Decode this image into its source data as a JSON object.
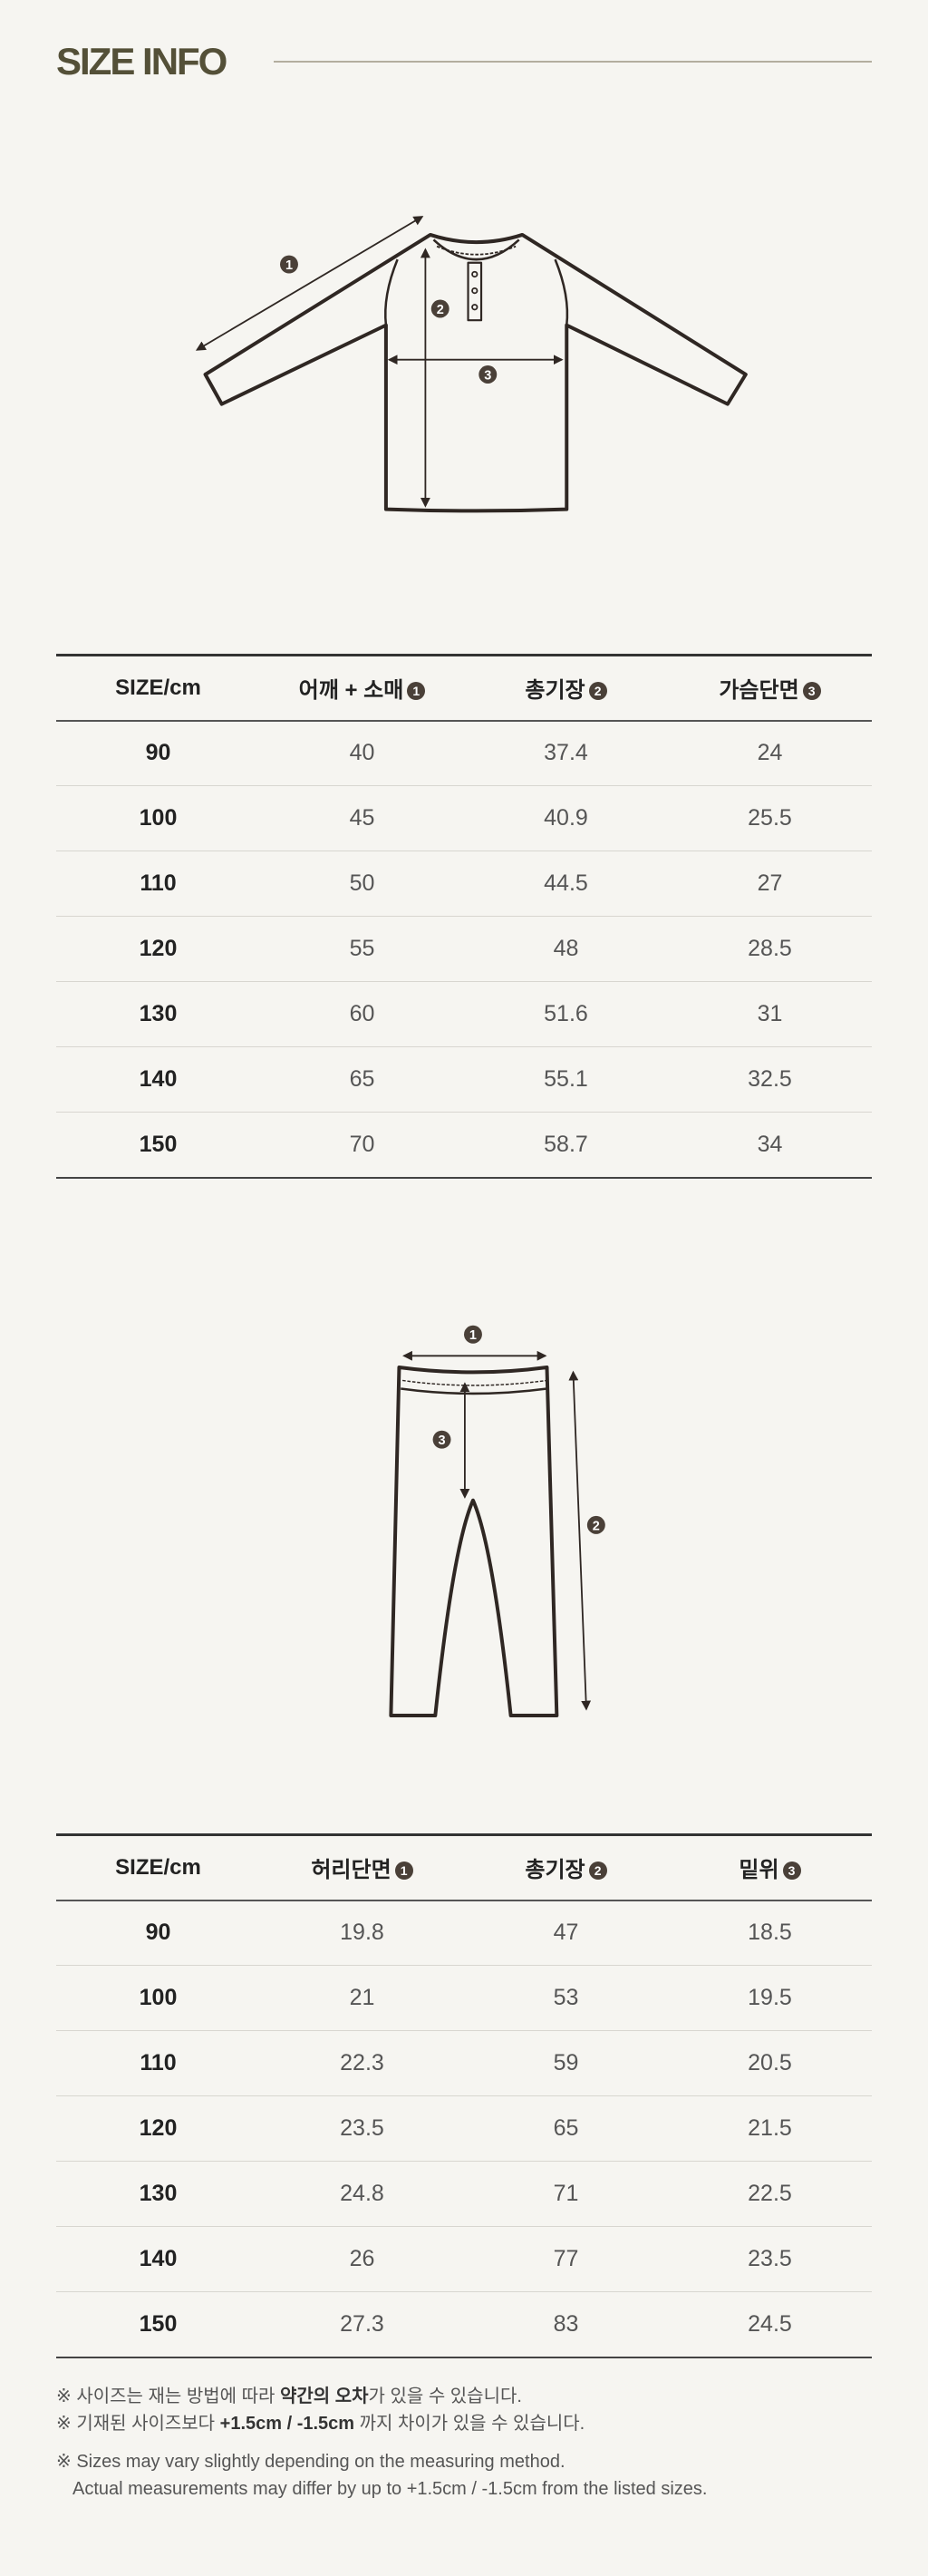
{
  "title": "SIZE INFO",
  "colors": {
    "background": "#f6f5f1",
    "title": "#545038",
    "rule": "#b3ae9f",
    "marker": "#4a4038",
    "outline": "#2f2723"
  },
  "top_table": {
    "headers": [
      {
        "label": "SIZE/cm"
      },
      {
        "label": "어깨 + 소매",
        "marker": "1"
      },
      {
        "label": "총기장",
        "marker": "2"
      },
      {
        "label": "가슴단면",
        "marker": "3"
      }
    ],
    "rows": [
      [
        "90",
        "40",
        "37.4",
        "24"
      ],
      [
        "100",
        "45",
        "40.9",
        "25.5"
      ],
      [
        "110",
        "50",
        "44.5",
        "27"
      ],
      [
        "120",
        "55",
        "48",
        "28.5"
      ],
      [
        "130",
        "60",
        "51.6",
        "31"
      ],
      [
        "140",
        "65",
        "55.1",
        "32.5"
      ],
      [
        "150",
        "70",
        "58.7",
        "34"
      ]
    ]
  },
  "bottom_table": {
    "headers": [
      {
        "label": "SIZE/cm"
      },
      {
        "label": "허리단면",
        "marker": "1"
      },
      {
        "label": "총기장",
        "marker": "2"
      },
      {
        "label": "밑위",
        "marker": "3"
      }
    ],
    "rows": [
      [
        "90",
        "19.8",
        "47",
        "18.5"
      ],
      [
        "100",
        "21",
        "53",
        "19.5"
      ],
      [
        "110",
        "22.3",
        "59",
        "20.5"
      ],
      [
        "120",
        "23.5",
        "65",
        "21.5"
      ],
      [
        "130",
        "24.8",
        "71",
        "22.5"
      ],
      [
        "140",
        "26",
        "77",
        "23.5"
      ],
      [
        "150",
        "27.3",
        "83",
        "24.5"
      ]
    ]
  },
  "diagram_markers": {
    "m1": "1",
    "m2": "2",
    "m3": "3"
  },
  "notes": {
    "n1_a": "※ 사이즈는 재는 방법에 따라 ",
    "n1_b": "약간의 오차",
    "n1_c": "가 있을 수 있습니다.",
    "n2_a": "※ 기재된 사이즈보다 ",
    "n2_b": "+1.5cm / -1.5cm",
    "n2_c": " 까지 차이가 있을 수 있습니다.",
    "n3": "※ Sizes may vary slightly depending on the measuring method.",
    "n4": "Actual measurements may differ by up to +1.5cm / -1.5cm from the listed sizes."
  }
}
